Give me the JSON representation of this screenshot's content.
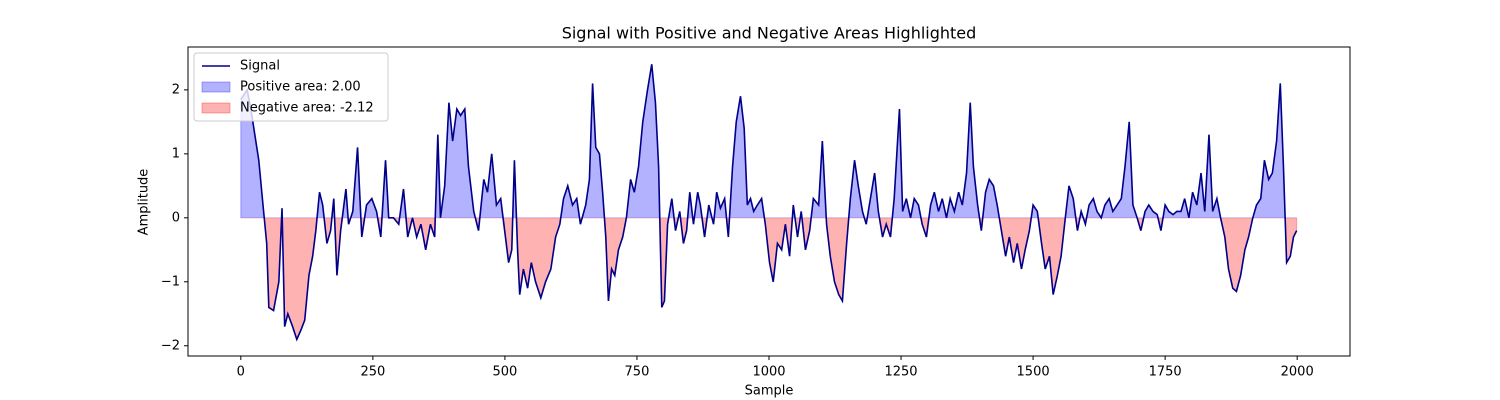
{
  "chart_data": {
    "type": "line",
    "title": "Signal with Positive and Negative Areas Highlighted",
    "xlabel": "Sample",
    "ylabel": "Amplitude",
    "x": [
      0,
      12,
      19,
      34,
      42,
      49,
      53,
      62,
      72,
      78,
      83,
      89,
      98,
      106,
      114,
      121,
      129,
      136,
      142,
      149,
      155,
      163,
      170,
      176,
      182,
      189,
      199,
      204,
      212,
      221,
      229,
      238,
      248,
      257,
      265,
      274,
      280,
      289,
      299,
      308,
      316,
      325,
      333,
      341,
      350,
      359,
      367,
      373,
      378,
      386,
      394,
      401,
      409,
      416,
      424,
      431,
      441,
      450,
      460,
      467,
      475,
      484,
      492,
      501,
      507,
      513,
      518,
      524,
      528,
      535,
      543,
      550,
      558,
      568,
      577,
      587,
      596,
      604,
      611,
      619,
      628,
      636,
      643,
      653,
      660,
      666,
      672,
      679,
      685,
      691,
      696,
      702,
      708,
      715,
      723,
      730,
      738,
      745,
      753,
      761,
      770,
      778,
      785,
      791,
      797,
      802,
      808,
      816,
      823,
      831,
      838,
      844,
      850,
      857,
      865,
      870,
      878,
      886,
      895,
      901,
      908,
      916,
      923,
      931,
      938,
      946,
      953,
      959,
      965,
      971,
      978,
      986,
      993,
      1001,
      1008,
      1016,
      1024,
      1031,
      1039,
      1046,
      1054,
      1061,
      1069,
      1077,
      1084,
      1094,
      1101,
      1109,
      1116,
      1124,
      1132,
      1139,
      1147,
      1154,
      1162,
      1169,
      1177,
      1184,
      1192,
      1200,
      1207,
      1215,
      1222,
      1230,
      1237,
      1247,
      1253,
      1260,
      1268,
      1275,
      1283,
      1290,
      1298,
      1306,
      1313,
      1321,
      1328,
      1336,
      1343,
      1351,
      1359,
      1366,
      1374,
      1381,
      1387,
      1395,
      1402,
      1410,
      1417,
      1425,
      1432,
      1440,
      1448,
      1455,
      1463,
      1470,
      1478,
      1485,
      1493,
      1500,
      1508,
      1516,
      1523,
      1531,
      1538,
      1546,
      1553,
      1561,
      1568,
      1576,
      1584,
      1591,
      1599,
      1606,
      1614,
      1621,
      1629,
      1636,
      1644,
      1651,
      1659,
      1667,
      1674,
      1682,
      1689,
      1697,
      1704,
      1712,
      1719,
      1727,
      1735,
      1742,
      1750,
      1757,
      1765,
      1772,
      1780,
      1787,
      1795,
      1802,
      1810,
      1818,
      1825,
      1833,
      1840,
      1848,
      1855,
      1863,
      1870,
      1878,
      1885,
      1893,
      1901,
      1908,
      1916,
      1923,
      1931,
      1938,
      1946,
      1953,
      1961,
      1968,
      1974,
      1980,
      1987,
      1993,
      1999
    ],
    "series": [
      {
        "name": "Signal",
        "color": "#00008b",
        "values": [
          1.85,
          2.0,
          1.7,
          0.9,
          0.2,
          -0.4,
          -1.4,
          -1.45,
          -1.0,
          0.15,
          -1.7,
          -1.5,
          -1.7,
          -1.9,
          -1.75,
          -1.6,
          -0.9,
          -0.6,
          -0.2,
          0.4,
          0.2,
          -0.4,
          -0.2,
          0.3,
          -0.9,
          -0.2,
          0.45,
          -0.1,
          0.1,
          1.1,
          -0.3,
          0.2,
          0.3,
          0.1,
          -0.3,
          0.9,
          0,
          0,
          -0.1,
          0.45,
          -0.3,
          0,
          -0.3,
          -0.1,
          -0.5,
          -0.1,
          -0.3,
          1.3,
          0,
          0.5,
          1.8,
          1.2,
          1.7,
          1.6,
          1.7,
          0.8,
          0.1,
          -0.2,
          0.6,
          0.4,
          1.0,
          0.2,
          0.3,
          -0.3,
          -0.7,
          -0.5,
          0.9,
          -0.5,
          -1.2,
          -0.8,
          -1.1,
          -0.7,
          -1.0,
          -1.25,
          -1.0,
          -0.8,
          -0.3,
          -0.1,
          0.3,
          0.5,
          0.2,
          0.3,
          -0.1,
          0.2,
          0.6,
          2.1,
          1.1,
          1.0,
          0.4,
          -0.3,
          -1.3,
          -0.8,
          -0.9,
          -0.5,
          -0.3,
          0,
          0.6,
          0.4,
          0.8,
          1.5,
          2.0,
          2.4,
          1.8,
          0.8,
          -1.4,
          -1.3,
          -0.1,
          0.3,
          -0.2,
          0.1,
          -0.4,
          -0.2,
          0.4,
          -0.1,
          0.4,
          0.2,
          -0.3,
          0.2,
          -0.1,
          0.4,
          0.15,
          0.3,
          -0.3,
          0.8,
          1.5,
          1.9,
          1.4,
          0.2,
          0.3,
          0.1,
          0.2,
          0.3,
          -0.1,
          -0.7,
          -1.0,
          -0.4,
          -0.5,
          -0.1,
          -0.6,
          0.2,
          -0.3,
          0.1,
          -0.5,
          -0.2,
          0.3,
          0.2,
          1.2,
          -0.1,
          -0.6,
          -1.0,
          -1.2,
          -1.3,
          -0.4,
          0.3,
          0.9,
          0.5,
          0.1,
          -0.1,
          0.3,
          0.7,
          0.1,
          -0.3,
          -0.1,
          -0.3,
          0.3,
          1.7,
          0.1,
          0.3,
          0,
          0.3,
          0.2,
          -0.1,
          -0.3,
          0.2,
          0.4,
          0.1,
          0.3,
          0,
          0.3,
          0.1,
          0.4,
          0.2,
          0.7,
          1.8,
          0.8,
          0.2,
          -0.2,
          0.4,
          0.6,
          0.5,
          0.2,
          -0.2,
          -0.6,
          -0.3,
          -0.7,
          -0.4,
          -0.8,
          -0.5,
          -0.2,
          0.2,
          0.1,
          -0.4,
          -0.8,
          -0.6,
          -1.2,
          -0.9,
          -0.6,
          0,
          0.5,
          0.3,
          -0.2,
          0.1,
          -0.1,
          0.2,
          0.3,
          0.1,
          0,
          0.2,
          0.3,
          0.1,
          0.2,
          0.3,
          0.8,
          1.5,
          0.2,
          0,
          -0.2,
          0.1,
          0.2,
          0.1,
          0.05,
          -0.2,
          0.2,
          0.1,
          0.05,
          0.1,
          0.1,
          0.3,
          0,
          0.4,
          0.2,
          0.7,
          0.1,
          1.3,
          0.1,
          0.3,
          0,
          -0.3,
          -0.8,
          -1.1,
          -1.15,
          -0.9,
          -0.5,
          -0.3,
          0,
          0.2,
          0.3,
          0.9,
          0.6,
          0.7,
          1.2,
          2.1,
          0.8,
          -0.7,
          -0.6,
          -0.3,
          -0.2
        ]
      }
    ],
    "fill_between": [
      {
        "name": "Positive area: 2.00",
        "color": "#0000ff",
        "alpha": 0.3,
        "where": "above"
      },
      {
        "name": "Negative area: -2.12",
        "color": "#ff0000",
        "alpha": 0.3,
        "where": "below"
      }
    ],
    "xlim": [
      -100,
      2100
    ],
    "xticks": [
      0,
      250,
      500,
      750,
      1000,
      1250,
      1500,
      1750,
      2000
    ],
    "ylim": [
      -2.16,
      2.67
    ],
    "yticks": [
      -2,
      -1,
      0,
      1,
      2
    ],
    "legend": "upper left"
  }
}
